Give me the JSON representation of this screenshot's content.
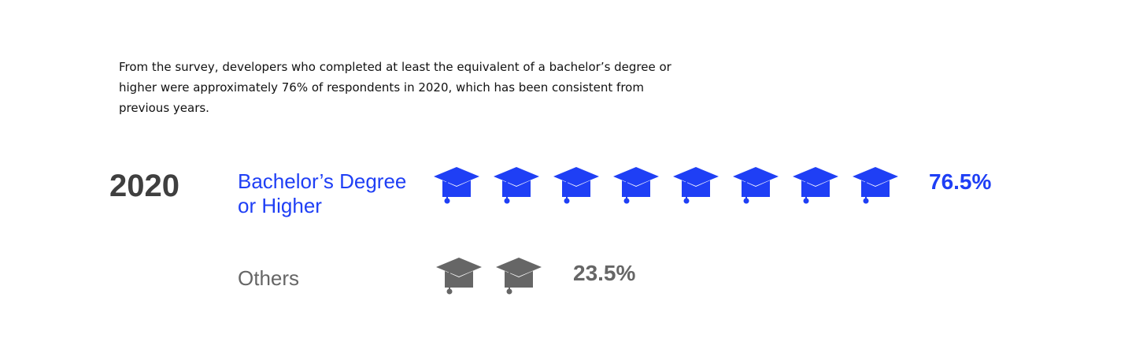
{
  "intro_text": "From the survey, developers who completed at least the equivalent of a bachelor’s degree or higher were approximately 76% of respondents in 2020, which has been consistent from previous years.",
  "chart_data": {
    "type": "pictograph",
    "title": "",
    "group": "2020",
    "icon": "graduation-cap-icon",
    "series": [
      {
        "name": "Bachelor’s Degree or Higher",
        "label": "Bachelor’s Degree or Higher",
        "value_label": "76.5%",
        "value": 76.5,
        "icon_count": 8,
        "color": "#1f3ff5"
      },
      {
        "name": "Others",
        "label": "Others",
        "value_label": "23.5%",
        "value": 23.5,
        "icon_count": 2,
        "color": "#666666"
      }
    ]
  }
}
